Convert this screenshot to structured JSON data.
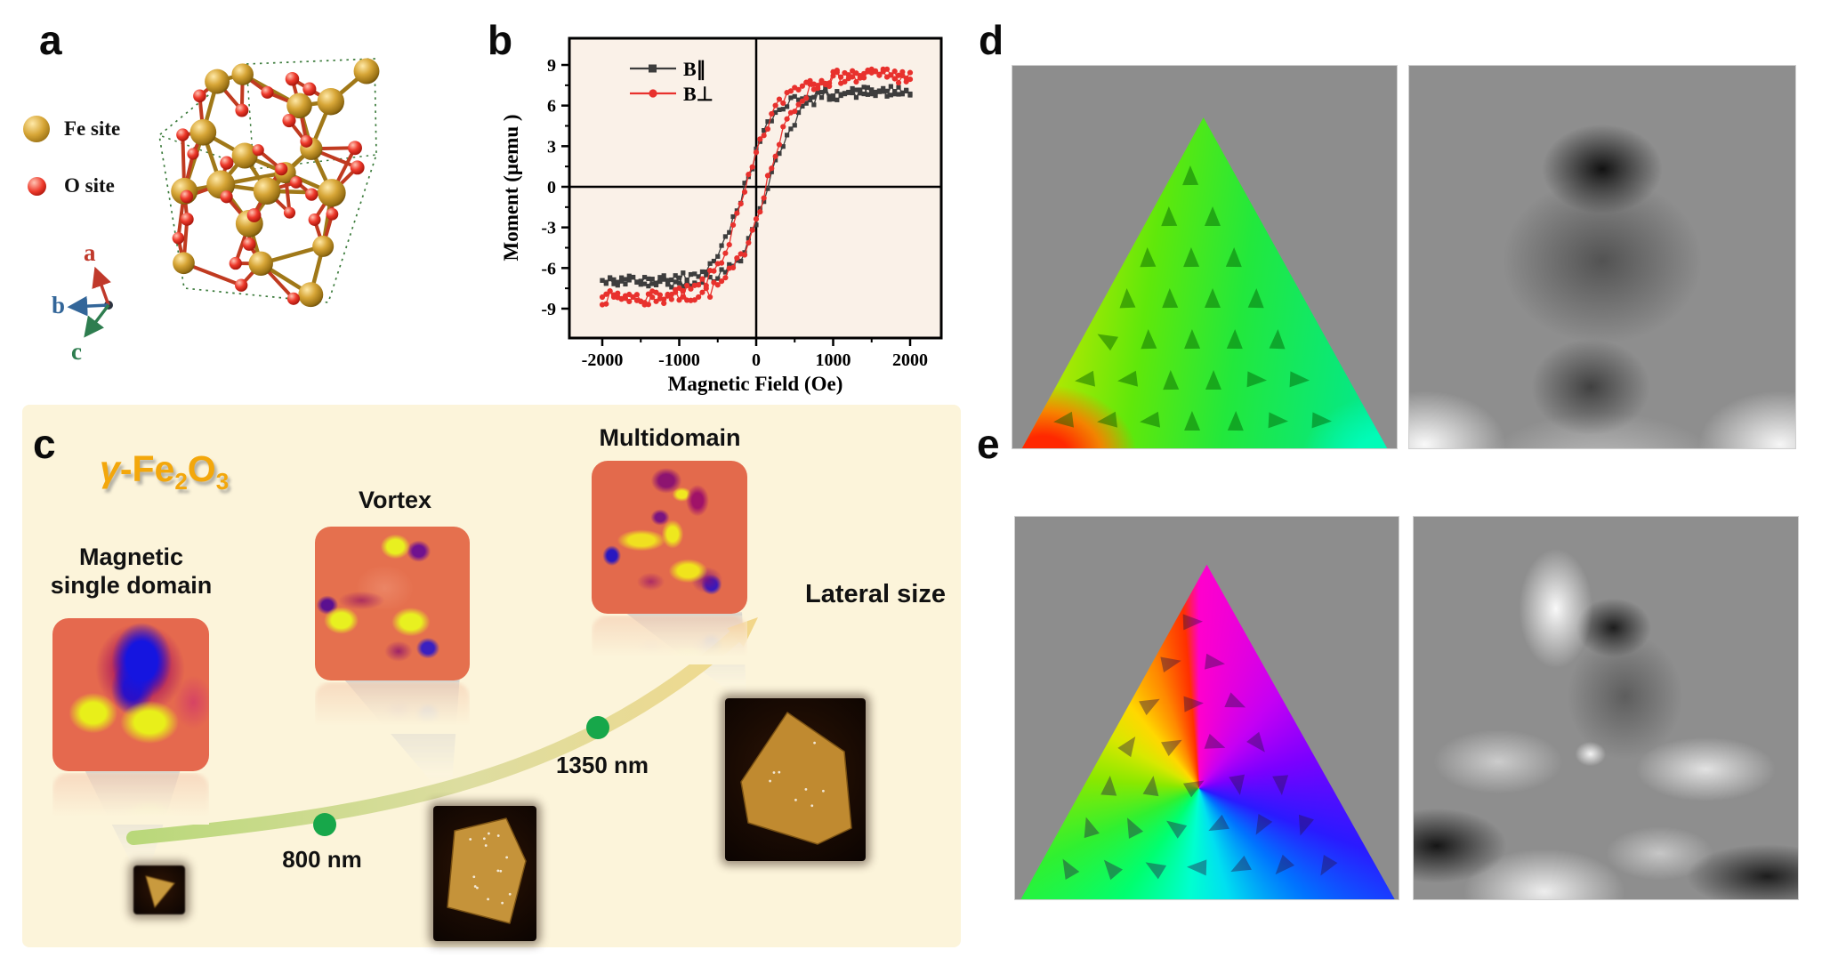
{
  "figure": {
    "background": "#ffffff"
  },
  "panel_a": {
    "label": "a",
    "legend": [
      {
        "label": "Fe site",
        "color": "#c79030"
      },
      {
        "label": "O site",
        "color": "#e8241f"
      }
    ],
    "axes": [
      {
        "label": "a",
        "color": "#c0392b"
      },
      {
        "label": "b",
        "color": "#336699"
      },
      {
        "label": "c",
        "color": "#2e7d4f"
      }
    ]
  },
  "panel_b": {
    "label": "b"
  },
  "chart_data": {
    "type": "line",
    "title": "",
    "xlabel": "Magnetic Field (Oe)",
    "ylabel": "Moment (μemu )",
    "xlim": [
      -2400,
      2400
    ],
    "ylim": [
      -11,
      11
    ],
    "x_ticks": [
      -2000,
      -1000,
      0,
      1000,
      2000
    ],
    "x_minor_ticks": [
      -1500,
      -500,
      500,
      1500
    ],
    "y_ticks": [
      9,
      6,
      3,
      0,
      -3,
      -6,
      -9
    ],
    "y_minor_ticks": [
      7.5,
      4.5,
      1.5,
      -1.5,
      -4.5,
      -7.5
    ],
    "legend_position": "top-left",
    "grid": false,
    "plot_background": "#faf1e8",
    "h_values": [
      -2000,
      -1800,
      -1600,
      -1400,
      -1200,
      -1000,
      -800,
      -600,
      -400,
      -200,
      0,
      200,
      400,
      600,
      800,
      1000,
      1200,
      1400,
      1600,
      1800,
      2000
    ],
    "series": [
      {
        "name": "B∥",
        "color": "#3d3d3d",
        "marker": "square",
        "saturation_uemu": 7.0,
        "coercivity_oe": 150,
        "noise_uemu": 0.42,
        "m_up": [
          -7.0,
          -7.0,
          -7.0,
          -7.0,
          -7.0,
          -7.0,
          -6.9,
          -6.7,
          -6.3,
          -5.1,
          -2.6,
          0.9,
          4.0,
          5.8,
          6.6,
          6.8,
          6.9,
          7.0,
          7.0,
          7.0,
          7.0
        ],
        "m_down": [
          -7.0,
          -7.0,
          -7.0,
          -7.0,
          -6.9,
          -6.8,
          -6.6,
          -5.8,
          -4.0,
          -0.9,
          2.6,
          5.1,
          6.3,
          6.7,
          6.9,
          7.0,
          7.0,
          7.0,
          7.0,
          7.0,
          7.0
        ]
      },
      {
        "name": "B⊥",
        "color": "#e8312d",
        "marker": "circle",
        "saturation_uemu": 8.2,
        "coercivity_oe": 120,
        "noise_uemu": 0.52,
        "m_up": [
          -8.2,
          -8.2,
          -8.2,
          -8.2,
          -8.1,
          -8.1,
          -8.0,
          -7.7,
          -6.9,
          -5.3,
          -2.3,
          1.5,
          4.8,
          6.7,
          7.6,
          8.0,
          8.1,
          8.2,
          8.2,
          8.2,
          8.2
        ],
        "m_down": [
          -8.2,
          -8.2,
          -8.2,
          -8.2,
          -8.1,
          -8.0,
          -7.6,
          -6.7,
          -4.8,
          -1.5,
          2.3,
          5.3,
          6.9,
          7.7,
          8.0,
          8.1,
          8.1,
          8.2,
          8.2,
          8.2,
          8.2
        ]
      }
    ]
  },
  "panel_c": {
    "label": "c",
    "compound": {
      "gamma": "γ",
      "fe": "-Fe",
      "sub1": "2",
      "o": "O",
      "sub2": "3",
      "color": "#f3a70b"
    },
    "states": [
      {
        "label": "Magnetic single domain"
      },
      {
        "label": "Vortex"
      },
      {
        "label": "Multidomain"
      }
    ],
    "markers": [
      {
        "label": "800 nm"
      },
      {
        "label": "1350 nm"
      }
    ],
    "arrow_label": "Lateral size",
    "background": "#fcf4da",
    "dot_color": "#17a74a",
    "arc_colors": [
      "#b9d87a",
      "#f0d98e"
    ]
  },
  "panel_d": {
    "label": "d"
  },
  "panel_e": {
    "label": "e"
  }
}
